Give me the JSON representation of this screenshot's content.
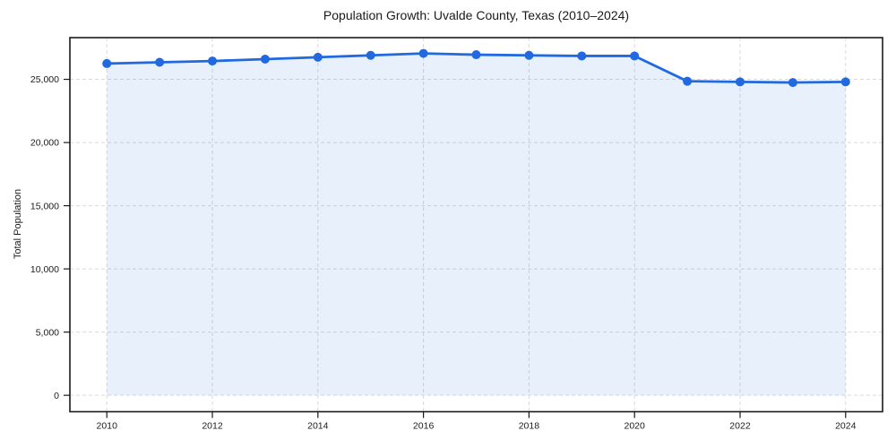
{
  "chart_data": {
    "type": "line",
    "title": "Population Growth: Uvalde County, Texas (2010–2024)",
    "xlabel": "",
    "ylabel": "Total Population",
    "x": [
      2010,
      2011,
      2012,
      2013,
      2014,
      2015,
      2016,
      2017,
      2018,
      2019,
      2020,
      2021,
      2022,
      2023,
      2024
    ],
    "series": [
      {
        "name": "Total Population",
        "values": [
          26250,
          26350,
          26450,
          26600,
          26750,
          26900,
          27050,
          26950,
          26900,
          26850,
          26850,
          24850,
          24800,
          24750,
          24800
        ]
      }
    ],
    "xticks": [
      2010,
      2012,
      2014,
      2016,
      2018,
      2020,
      2022,
      2024
    ],
    "yticks": [
      0,
      5000,
      10000,
      15000,
      20000,
      25000
    ],
    "ytick_labels": [
      "0",
      "5,000",
      "10,000",
      "15,000",
      "20,000",
      "25,000"
    ],
    "xlim": [
      2009.3,
      2024.7
    ],
    "ylim": [
      -1300,
      28300
    ],
    "grid": true,
    "grid_style": "dashed",
    "legend": "none",
    "area_to_zero": true,
    "style": {
      "line_color": "#2169e0",
      "marker_color": "#2169e0",
      "fill_color": "rgba(33,105,224,0.10)",
      "grid_color": "#d9d9d9",
      "spine_color": "#1a1a1a",
      "text_color": "#1a1a1a",
      "background": "#ffffff"
    }
  }
}
